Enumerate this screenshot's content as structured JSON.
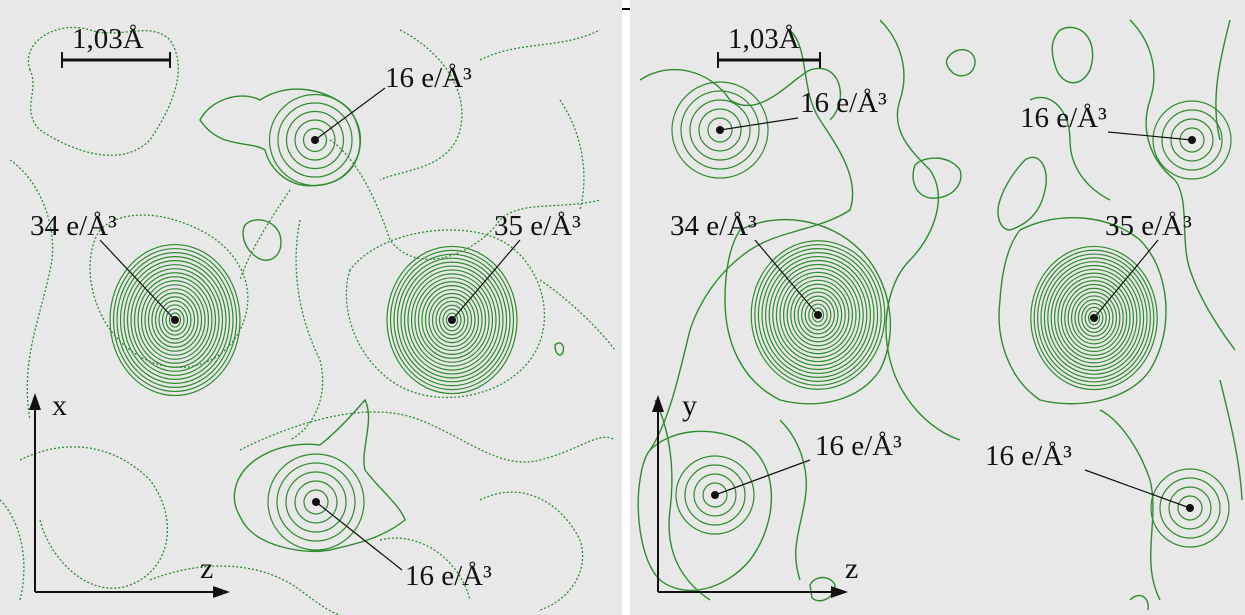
{
  "panels": [
    {
      "scale_label": "1,03Å",
      "axis_vertical": "x",
      "axis_horizontal": "z",
      "peaks": [
        {
          "label": "16 e/Å³",
          "value": 16
        },
        {
          "label": "34 e/Å³",
          "value": 34
        },
        {
          "label": "35 e/Å³",
          "value": 35
        },
        {
          "label": "16 e/Å³",
          "value": 16
        }
      ]
    },
    {
      "scale_label": "1,03Å",
      "axis_vertical": "y",
      "axis_horizontal": "z",
      "peaks": [
        {
          "label": "16 e/Å³",
          "value": 16
        },
        {
          "label": "16 e/Å³",
          "value": 16
        },
        {
          "label": "34 e/Å³",
          "value": 34
        },
        {
          "label": "35 e/Å³",
          "value": 35
        },
        {
          "label": "16 e/Å³",
          "value": 16
        },
        {
          "label": "16 e/Å³",
          "value": 16
        }
      ]
    }
  ],
  "colors": {
    "contour": "#2e8b2e",
    "background": "#e8e8e8",
    "ink": "#111111"
  }
}
